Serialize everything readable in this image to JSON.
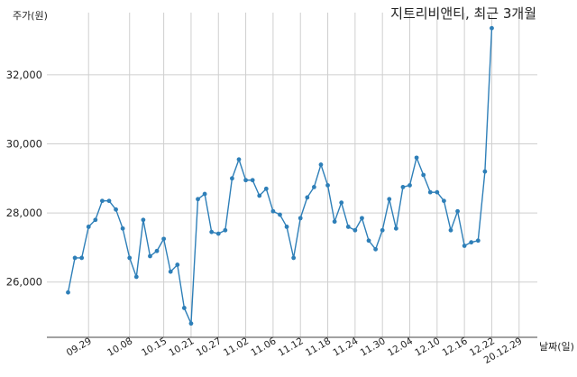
{
  "chart_data": {
    "type": "line",
    "title": "지트리비앤티, 최근 3개월",
    "ylabel": "주가(원)",
    "xlabel": "날짜(일)",
    "ylim": [
      24400,
      33800
    ],
    "yticks": [
      26000,
      28000,
      30000,
      32000
    ],
    "ytick_labels": [
      "26,000",
      "28,000",
      "30,000",
      "32,000"
    ],
    "xtick_labels": [
      "09.29",
      "10.08",
      "10.15",
      "10.21",
      "10.27",
      "11.02",
      "11.06",
      "11.12",
      "11.18",
      "11.24",
      "11.30",
      "12.04",
      "12.10",
      "12.16",
      "12.22",
      "20.12.29"
    ],
    "xtick_index": [
      3,
      9,
      14,
      18,
      22,
      26,
      30,
      34,
      38,
      42,
      46,
      50,
      54,
      58,
      62,
      66
    ],
    "grid": true,
    "color": "#2e7fb8",
    "series": [
      {
        "values": [
          25700,
          26700,
          26700,
          27600,
          27800,
          28350,
          28350,
          28100,
          27550,
          26700,
          26150,
          27800,
          26750,
          26900,
          27250,
          26300,
          26500,
          25250,
          24800,
          28400,
          28550,
          27450,
          27400,
          27500,
          29000,
          29550,
          28950,
          28950,
          28500,
          28700,
          28050,
          27950,
          27600,
          26700,
          27850,
          28450,
          28750,
          29400,
          28800,
          27750,
          28300,
          27600,
          27500,
          27850,
          27200,
          26950,
          27500,
          28400,
          27550,
          28750,
          28800,
          29600,
          29100,
          28600,
          28600,
          28350,
          27500,
          28050,
          27050,
          27150,
          27200,
          29200,
          33350
        ]
      }
    ]
  }
}
